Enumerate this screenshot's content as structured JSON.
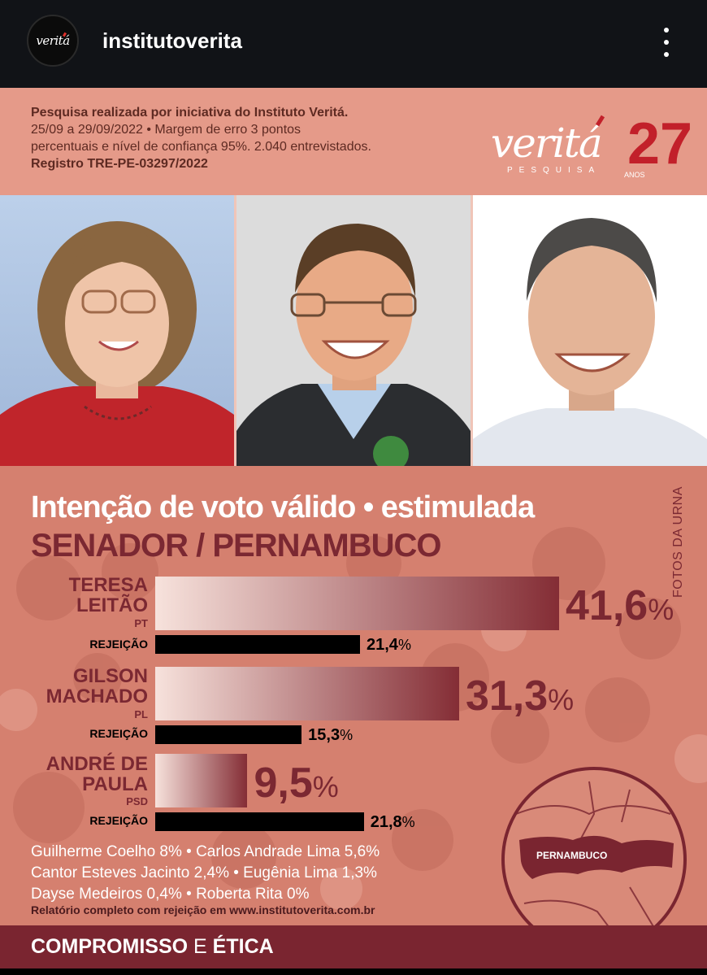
{
  "header": {
    "avatar_text": "veritá",
    "username": "institutoverita"
  },
  "info": {
    "line1": "Pesquisa realizada por iniciativa do Instituto Veritá.",
    "line2": "25/09 a 29/09/2022 • Margem de erro 3 pontos",
    "line3": "percentuais e nível de confiança 95%. 2.040 entrevistados.",
    "line4": "Registro TRE-PE-03297/2022"
  },
  "logo": {
    "word": "veritá",
    "sub": "PESQUISA",
    "number": "27",
    "anos": "ANOS"
  },
  "title": "Intenção de voto válido • estimulada",
  "subtitle": "SENADOR / PERNAMBUCO",
  "side_label": "FOTOS DA URNA",
  "rejection_label": "REJEIÇÃO",
  "percent_sign": "%",
  "candidates": [
    {
      "line1": "TERESA",
      "line2": "LEITÃO",
      "party": "PT",
      "vote": "41,6",
      "vote_value": 41.6,
      "rejection": "21,4",
      "rejection_value": 21.4
    },
    {
      "line1": "GILSON",
      "line2": "MACHADO",
      "party": "PL",
      "vote": "31,3",
      "vote_value": 31.3,
      "rejection": "15,3",
      "rejection_value": 15.3
    },
    {
      "line1": "ANDRÉ DE",
      "line2": "PAULA",
      "party": "PSD",
      "vote": "9,5",
      "vote_value": 9.5,
      "rejection": "21,8",
      "rejection_value": 21.8
    }
  ],
  "others": [
    "Guilherme Coelho 8% • Carlos Andrade Lima 5,6%",
    "Cantor Esteves Jacinto 2,4% • Eugênia Lima 1,3%",
    "Dayse Medeiros 0,4% • Roberta Rita 0%"
  ],
  "report": "Relatório completo com rejeição em www.institutoverita.com.br",
  "map_label": "PERNAMBUCO",
  "footer": {
    "part1": "COMPROMISSO",
    "part2": "E",
    "part3": "ÉTICA"
  },
  "colors": {
    "accent": "#7b2832",
    "band": "#e59a89",
    "main_bg": "#d5806f",
    "footer": "#7a2530"
  },
  "icons": {
    "more": "more-vertical-icon"
  }
}
